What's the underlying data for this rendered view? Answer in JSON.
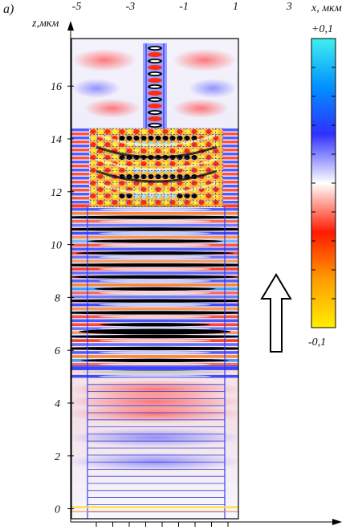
{
  "panel_label": "a)",
  "chart_data": {
    "type": "heatmap",
    "xlabel": "",
    "ylabel": "z,мкм",
    "x_ticks": [
      "-5",
      "-3",
      "-1",
      "1",
      "3"
    ],
    "y_ticks": [
      "0",
      "2",
      "4",
      "6",
      "8",
      "10",
      "12",
      "14",
      "16"
    ],
    "xlim": [
      -5.2,
      3.8
    ],
    "ylim": [
      -0.5,
      17.8
    ],
    "plot_extent_x": [
      -4.6,
      0.5
    ],
    "colorbar": {
      "label": "x, мкм",
      "max_label": "+0,1",
      "min_label": "-0,1",
      "range": [
        -0.1,
        0.1
      ],
      "colors": [
        "#ffee00",
        "#ff8800",
        "#ff1a00",
        "#ffffff",
        "#3030ff",
        "#00a0ff",
        "#40f0f0"
      ]
    },
    "arrow": "up"
  }
}
